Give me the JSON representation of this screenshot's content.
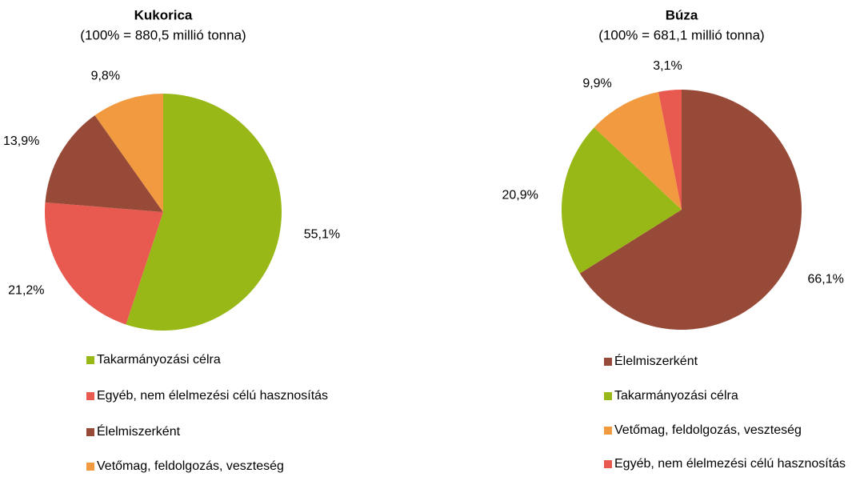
{
  "chart_data": [
    {
      "type": "pie",
      "title": "Kukorica",
      "subtitle": "(100% = 880,5 millió tonna)",
      "categories": [
        "Takarmányozási célra",
        "Egyéb, nem élelmezési célú hasznosítás",
        "Élelmiszerként",
        "Vetőmag, feldolgozás, veszteség"
      ],
      "values": [
        55.1,
        21.2,
        13.9,
        9.8
      ],
      "value_labels": [
        "55,1%",
        "21,2%",
        "13,9%",
        "9,8%"
      ],
      "colors": [
        "#97b816",
        "#e8594f",
        "#984a38",
        "#f29a3f"
      ]
    },
    {
      "type": "pie",
      "title": "Búza",
      "subtitle": "(100% = 681,1 millió tonna)",
      "categories": [
        "Élelmiszerként",
        "Takarmányozási célra",
        "Vetőmag, feldolgozás, veszteség",
        "Egyéb, nem élelmezési célú hasznosítás"
      ],
      "values": [
        66.1,
        20.9,
        9.9,
        3.1
      ],
      "value_labels": [
        "66,1%",
        "20,9%",
        "9,9%",
        "3,1%"
      ],
      "colors": [
        "#984a38",
        "#97b816",
        "#f29a3f",
        "#e8594f"
      ]
    }
  ]
}
